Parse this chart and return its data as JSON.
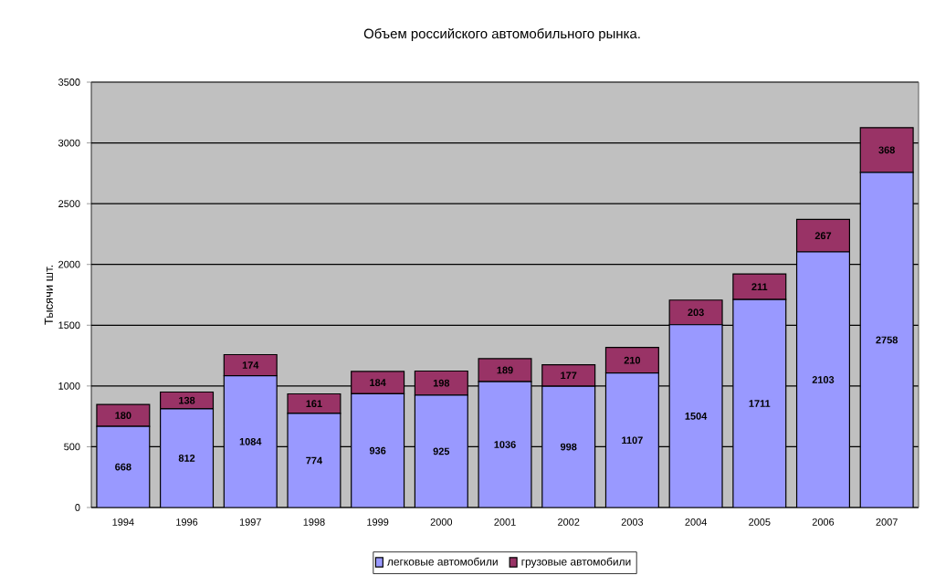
{
  "chart_data": {
    "type": "bar",
    "stacked": true,
    "title": "Объем российского автомобильного рынка.",
    "ylabel": "Тысячи шт.",
    "categories": [
      "1994",
      "1996",
      "1997",
      "1998",
      "1999",
      "2000",
      "2001",
      "2002",
      "2003",
      "2004",
      "2005",
      "2006",
      "2007"
    ],
    "series": [
      {
        "name": "легковые автомобили",
        "color": "#9999ff",
        "values": [
          668,
          812,
          1084,
          774,
          936,
          925,
          1036,
          998,
          1107,
          1504,
          1711,
          2103,
          2758
        ]
      },
      {
        "name": "грузовые автомобили",
        "color": "#993366",
        "values": [
          180,
          138,
          174,
          161,
          184,
          198,
          189,
          177,
          210,
          203,
          211,
          267,
          368
        ]
      }
    ],
    "ylim": [
      0,
      3500
    ],
    "yticks": [
      0,
      500,
      1000,
      1500,
      2000,
      2500,
      3000,
      3500
    ],
    "grid": "y",
    "legend": "bottom",
    "data_labels": true
  }
}
